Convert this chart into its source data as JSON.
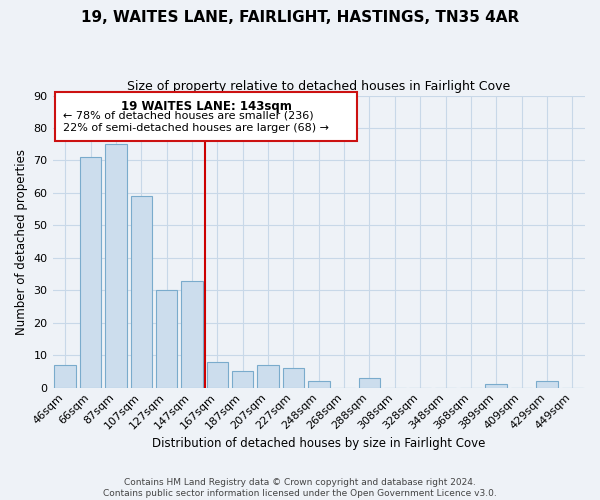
{
  "title": "19, WAITES LANE, FAIRLIGHT, HASTINGS, TN35 4AR",
  "subtitle": "Size of property relative to detached houses in Fairlight Cove",
  "xlabel": "Distribution of detached houses by size in Fairlight Cove",
  "ylabel": "Number of detached properties",
  "bar_labels": [
    "46sqm",
    "66sqm",
    "87sqm",
    "107sqm",
    "127sqm",
    "147sqm",
    "167sqm",
    "187sqm",
    "207sqm",
    "227sqm",
    "248sqm",
    "268sqm",
    "288sqm",
    "308sqm",
    "328sqm",
    "348sqm",
    "368sqm",
    "389sqm",
    "409sqm",
    "429sqm",
    "449sqm"
  ],
  "bar_values": [
    7,
    71,
    75,
    59,
    30,
    33,
    8,
    5,
    7,
    6,
    2,
    0,
    3,
    0,
    0,
    0,
    0,
    1,
    0,
    2,
    0
  ],
  "bar_color": "#ccdded",
  "bar_edge_color": "#7aabcc",
  "vline_x": 5.5,
  "vline_color": "#cc0000",
  "ylim": [
    0,
    90
  ],
  "yticks": [
    0,
    10,
    20,
    30,
    40,
    50,
    60,
    70,
    80,
    90
  ],
  "annotation_title": "19 WAITES LANE: 143sqm",
  "annotation_line1": "← 78% of detached houses are smaller (236)",
  "annotation_line2": "22% of semi-detached houses are larger (68) →",
  "footer_line1": "Contains HM Land Registry data © Crown copyright and database right 2024.",
  "footer_line2": "Contains public sector information licensed under the Open Government Licence v3.0.",
  "background_color": "#eef2f7",
  "plot_bg_color": "#eef2f7",
  "grid_color": "#c8d8e8"
}
